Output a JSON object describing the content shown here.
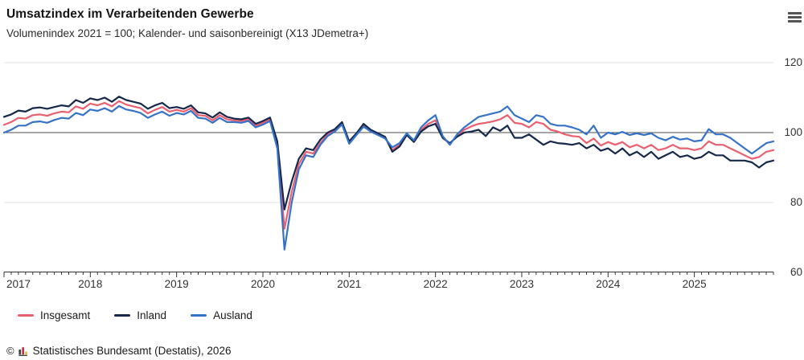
{
  "header": {
    "title": "Umsatzindex im Verarbeitenden Gewerbe",
    "subtitle": "Volumenindex 2021 = 100; Kalender- und saisonbereinigt (X13 JDemetra+)"
  },
  "menu": {
    "icon": "hamburger-menu-icon"
  },
  "chart_data": {
    "type": "line",
    "title": "Umsatzindex im Verarbeitenden Gewerbe",
    "subtitle": "Volumenindex 2021 = 100; Kalender- und saisonbereinigt (X13 JDemetra+)",
    "x_start": "2017-01",
    "x_end": "2025-12",
    "x_frequency": "monthly",
    "x_years": [
      "2017",
      "2018",
      "2019",
      "2020",
      "2021",
      "2022",
      "2023",
      "2024",
      "2025"
    ],
    "y_ticks": [
      120,
      100,
      80,
      60
    ],
    "ylim": [
      60,
      124
    ],
    "baseline_value": 100,
    "grid": "horizontal-only",
    "legend_position": "bottom-left",
    "axis_color": "#333333",
    "gridline_color": "#e0e0e0",
    "baseline_color": "#4d4d4d",
    "series": [
      {
        "name": "Insgesamt",
        "color": "#ec5f6e",
        "values": [
          102.2,
          103,
          104.2,
          104,
          105,
          105.2,
          104.8,
          105.5,
          106,
          105.8,
          107.5,
          106.8,
          108.3,
          107.8,
          108.5,
          107.5,
          109,
          108,
          107.5,
          107,
          105.5,
          106.5,
          107.3,
          106,
          106.5,
          106,
          107,
          105,
          104.8,
          103.5,
          105,
          103.8,
          103.5,
          103.3,
          103.8,
          102,
          102.8,
          103.8,
          96.5,
          72.5,
          83,
          91,
          94.5,
          94,
          97,
          99.5,
          100.5,
          102.5,
          97,
          99.5,
          102,
          100.5,
          99.5,
          98.5,
          95,
          96.5,
          99.5,
          97.5,
          100.8,
          102.5,
          103.5,
          98.5,
          96.8,
          99,
          100.8,
          101.8,
          102.5,
          102.8,
          103.2,
          103.8,
          105,
          102.8,
          102.5,
          101.5,
          103,
          102.5,
          100.8,
          100.3,
          99.5,
          99,
          98.8,
          97,
          98.3,
          96.3,
          97.3,
          96.5,
          97.3,
          95.8,
          96.5,
          95.5,
          96.5,
          95,
          95.5,
          96.5,
          95.5,
          95.5,
          95,
          95.5,
          97.5,
          96.5,
          96.5,
          95.5,
          94.5,
          93.5,
          92.5,
          93,
          94.5,
          95
        ]
      },
      {
        "name": "Inland",
        "color": "#16294d",
        "values": [
          104.5,
          105.2,
          106.3,
          106,
          107,
          107.2,
          106.8,
          107.3,
          107.8,
          107.5,
          109.3,
          108.5,
          109.8,
          109.3,
          110,
          108.8,
          110.3,
          109.3,
          108.8,
          108.3,
          106.8,
          107.8,
          108.5,
          107,
          107.3,
          106.8,
          107.8,
          105.8,
          105.5,
          104.3,
          105.8,
          104.5,
          104,
          103.8,
          104.3,
          102.5,
          103.3,
          104.3,
          97.5,
          78,
          86,
          92.5,
          95.5,
          95,
          98,
          100,
          101,
          103,
          97.5,
          99.8,
          102.5,
          100.8,
          99.8,
          98.8,
          94.5,
          96,
          99.3,
          97.3,
          100.3,
          101.8,
          102.5,
          98.5,
          97,
          98.8,
          100,
          100.3,
          100.8,
          99,
          101.5,
          100.5,
          102,
          98.5,
          98.5,
          99.5,
          98,
          96.5,
          97.5,
          97,
          96.8,
          96.5,
          97,
          95.5,
          96.5,
          94.8,
          95.5,
          94,
          95.5,
          93.5,
          94.5,
          93,
          94.5,
          92.5,
          93.5,
          94.5,
          93,
          93.5,
          92.5,
          93,
          94.5,
          93.5,
          93.5,
          92,
          92,
          92,
          91.5,
          90,
          91.5,
          92
        ]
      },
      {
        "name": "Ausland",
        "color": "#3673c8",
        "values": [
          100,
          100.8,
          102,
          102,
          103,
          103.2,
          102.8,
          103.6,
          104.2,
          104,
          105.6,
          105,
          106.6,
          106.2,
          107,
          106,
          107.6,
          106.6,
          106.2,
          105.6,
          104.2,
          105.2,
          106,
          104.8,
          105.6,
          105.2,
          106.2,
          104.2,
          104,
          102.8,
          104.2,
          103,
          103,
          102.8,
          103.3,
          101.5,
          102.3,
          103.3,
          95.5,
          66.5,
          80,
          89.5,
          93.5,
          93,
          96.5,
          99,
          100.3,
          102.3,
          96.8,
          99.3,
          101.7,
          100.3,
          99.3,
          98.3,
          95.8,
          97,
          99.8,
          97.8,
          101.5,
          103.5,
          105,
          99,
          96.5,
          99.5,
          101.5,
          103,
          104.5,
          105,
          105.5,
          106,
          107.5,
          105,
          104,
          103,
          105,
          104.5,
          102.5,
          102,
          102,
          101.5,
          100.8,
          99.5,
          102,
          98.5,
          100,
          99.5,
          100.2,
          99.3,
          99.8,
          99.3,
          99.8,
          98.5,
          97.8,
          98.8,
          98,
          98.3,
          97.5,
          97.8,
          101,
          99.5,
          99.5,
          98.5,
          97,
          95.5,
          94,
          95.5,
          97,
          97.5
        ]
      }
    ]
  },
  "legend": {
    "items": [
      "Insgesamt",
      "Inland",
      "Ausland"
    ]
  },
  "footer": {
    "copyright": "©",
    "text": "Statistisches Bundesamt (Destatis), 2026",
    "logo": "destatis-bars-logo",
    "logo_colors": [
      "#3d3d3d",
      "#cc2f44",
      "#efb73e"
    ]
  }
}
